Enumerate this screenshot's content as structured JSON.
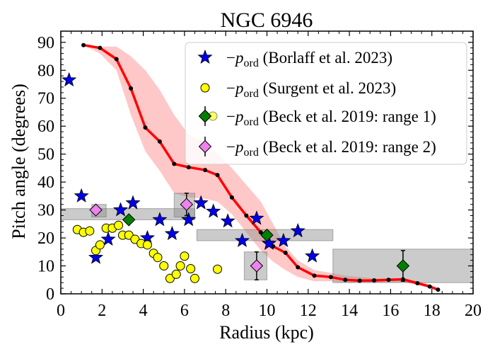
{
  "chart_data": {
    "type": "scatter",
    "title": "NGC 6946",
    "xlabel": "Radius (kpc)",
    "ylabel": "Pitch angle (degrees)",
    "xlim": [
      0,
      20
    ],
    "ylim": [
      0,
      94
    ],
    "xticks": [
      0,
      2,
      4,
      6,
      8,
      10,
      12,
      14,
      16,
      18,
      20
    ],
    "yticks": [
      0,
      10,
      20,
      30,
      40,
      50,
      60,
      70,
      80,
      90
    ],
    "legend_position": "top-right",
    "line": {
      "color": "#ff0000",
      "x": [
        1.1,
        1.9,
        2.7,
        3.4,
        4.1,
        4.8,
        5.5,
        6.2,
        7.0,
        7.6,
        8.3,
        9.0,
        9.7,
        10.3,
        10.9,
        11.5,
        12.3,
        13.1,
        13.8,
        14.5,
        15.2,
        15.9,
        16.6,
        17.3,
        17.9,
        18.3
      ],
      "y": [
        89,
        88,
        84,
        73.5,
        59.5,
        54.5,
        46.5,
        45.3,
        44.3,
        42.5,
        34.5,
        28,
        22,
        17,
        14.7,
        9.5,
        6.5,
        6,
        5,
        4.7,
        4.8,
        5,
        5.2,
        3.8,
        2.6,
        1.5
      ]
    },
    "band": {
      "color": "#ffc8c8",
      "x": [
        1.1,
        1.9,
        2.7,
        3.4,
        4.1,
        4.8,
        5.5,
        6.2,
        7.0,
        7.6,
        8.3,
        9.0,
        9.7,
        10.3,
        10.9,
        11.5,
        12.3,
        13.1,
        13.8,
        14.5,
        15.2,
        15.9,
        16.6,
        17.3,
        17.9,
        18.3
      ],
      "upper": [
        89,
        88.5,
        88.5,
        85,
        80,
        73,
        64,
        57,
        54,
        50,
        45,
        39,
        33,
        25,
        17,
        12,
        8.5,
        7.5,
        6.5,
        6,
        5.5,
        5.5,
        5.5,
        4.5,
        3.3,
        2
      ],
      "lower": [
        89,
        86,
        80,
        64,
        51,
        44,
        36,
        34.5,
        34,
        33,
        28.5,
        22,
        15.5,
        11.5,
        8.5,
        6,
        4.5,
        4.5,
        4,
        4,
        4,
        4.2,
        4.2,
        3.2,
        2.2,
        1.2
      ]
    },
    "shaded_regions": [
      {
        "x": [
          0,
          6.5
        ],
        "y": [
          26.5,
          30.5
        ]
      },
      {
        "x": [
          5.5,
          6.5
        ],
        "y": [
          27.5,
          36
        ]
      },
      {
        "x": [
          1.5,
          2.2
        ],
        "y": [
          27.5,
          32
        ]
      },
      {
        "x": [
          6.6,
          13.2
        ],
        "y": [
          19,
          23
        ]
      },
      {
        "x": [
          8.9,
          10.0
        ],
        "y": [
          5,
          15
        ]
      },
      {
        "x": [
          13.2,
          20
        ],
        "y": [
          4,
          16
        ]
      }
    ],
    "series": [
      {
        "name": "−p_ord (Borlaff et al. 2023)",
        "marker": "star",
        "color": "#0000e6",
        "x": [
          0.4,
          1.0,
          1.7,
          2.3,
          2.9,
          3.5,
          4.2,
          4.8,
          5.4,
          6.2,
          6.8,
          7.4,
          8.1,
          8.8,
          9.5,
          10.1,
          10.8,
          11.5,
          12.2
        ],
        "y": [
          76.5,
          35,
          13,
          19.5,
          30,
          32.5,
          20,
          26.5,
          21.5,
          26.5,
          32.5,
          29.5,
          26,
          19,
          27,
          18,
          19,
          22.5,
          13.5
        ]
      },
      {
        "name": "−p_ord (Surgent et al. 2023)",
        "marker": "circle",
        "color": "#ffff00",
        "x": [
          0.8,
          1.1,
          1.4,
          1.7,
          1.9,
          2.2,
          2.5,
          2.8,
          3.0,
          3.3,
          3.6,
          3.9,
          4.2,
          4.5,
          4.7,
          5.0,
          5.3,
          5.6,
          5.8,
          6.0,
          6.3,
          6.5,
          7.6
        ],
        "y": [
          23,
          22,
          22.5,
          15.5,
          17.5,
          23.5,
          23.5,
          24.5,
          21,
          21,
          19.5,
          18,
          17.5,
          14.5,
          13,
          10,
          5.5,
          7,
          10,
          13.5,
          9,
          5.5,
          8.8
        ]
      },
      {
        "name": "−p_ord (Beck et al. 2019: range 1)",
        "marker": "diamond",
        "color": "#008000",
        "x": [
          3.3,
          10.0,
          16.6
        ],
        "y": [
          26.5,
          21,
          10
        ],
        "err": [
          0,
          1.5,
          5.5
        ]
      },
      {
        "name": "−p_ord (Beck et al. 2019: range 2)",
        "marker": "diamond",
        "color": "#ee82ee",
        "x": [
          1.7,
          6.1,
          9.5
        ],
        "y": [
          30,
          32,
          10
        ],
        "err": [
          0,
          4,
          5
        ]
      }
    ],
    "legend": [
      {
        "prefix": "−p",
        "sub": "ord",
        "suffix": " (Borlaff et al. 2023)",
        "marker": "star",
        "color": "#0000e6"
      },
      {
        "prefix": "−p",
        "sub": "ord",
        "suffix": " (Surgent et al. 2023)",
        "marker": "circle",
        "color": "#ffff00"
      },
      {
        "prefix": "−p",
        "sub": "ord",
        "suffix": " (Beck et al. 2019: range 1)",
        "marker": "diamond",
        "color": "#008000"
      },
      {
        "prefix": "−p",
        "sub": "ord",
        "suffix": " (Beck et al. 2019: range 2)",
        "marker": "diamond",
        "color": "#ee82ee"
      }
    ]
  }
}
